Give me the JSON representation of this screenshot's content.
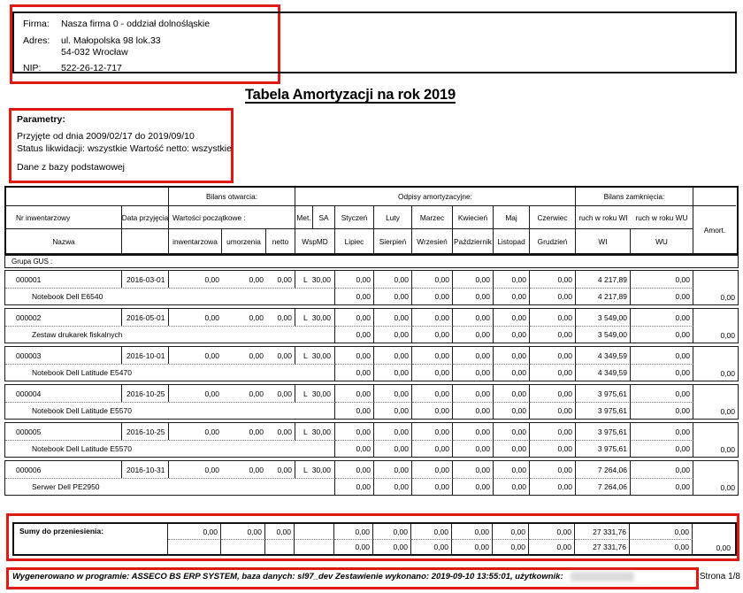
{
  "company": {
    "firma_label": "Firma:",
    "firma": "Nasza firma 0 - oddział dolnośląskie",
    "adres_label": "Adres:",
    "adres_line1": "ul. Małopolska 98 lok.33",
    "adres_line2": "54-032  Wrocław",
    "nip_label": "NIP:",
    "nip": "522-26-12-717"
  },
  "title": "Tabela Amortyzacji na rok 2019",
  "parameters": {
    "header": "Parametry:",
    "line1": "Przyjęte od dnia 2009/02/17  do 2019/09/10",
    "line2": "Status likwidacji:  wszystkie   Wartość netto:  wszystkie",
    "line3": "Dane z bazy podstawowej"
  },
  "table": {
    "header": {
      "bilans_otwarcia": "Bilans otwarcia:",
      "odpisy": "Odpisy amortyzacyjne:",
      "bilans_zamkniecia": "Bilans zamknięcia:",
      "nr_inwentarzowy": "Nr inwentarzowy",
      "data_przyjecia": "Data przyjęcia",
      "wartosci_poczatkowe": "Wartości początkowe :",
      "met": "Met.",
      "sa": "SA",
      "wspmd": "WspMD",
      "nazwa": "Nazwa",
      "inwentarzowa": "inwentarzowa",
      "umorzenia": "umorzenia",
      "netto": "netto",
      "months_top": [
        "Styczeń",
        "Luty",
        "Marzec",
        "Kwiecień",
        "Maj",
        "Czerwiec"
      ],
      "months_bottom": [
        "Lipiec",
        "Sierpień",
        "Wrzesień",
        "Październik",
        "Listopad",
        "Grudzień"
      ],
      "ruch_wi": "ruch w roku WI",
      "ruch_wu": "ruch w roku WU",
      "wi": "WI",
      "wu": "WU",
      "amort": "Amort."
    },
    "group_label": "Grupa GUS :",
    "rows": [
      {
        "nr": "000001",
        "date": "2016-03-01",
        "name": "Notebook Dell E6540",
        "inw": "0,00",
        "umo": "0,00",
        "netto": "0,00",
        "met": "L",
        "sa": "30,00",
        "m1": [
          "0,00",
          "0,00",
          "0,00",
          "0,00",
          "0,00",
          "0,00"
        ],
        "m2": [
          "0,00",
          "0,00",
          "0,00",
          "0,00",
          "0,00",
          "0,00"
        ],
        "ruch_wi": "4 217,89",
        "ruch_wu": "0,00",
        "wi": "4 217,89",
        "wu": "0,00",
        "amort": "0,00"
      },
      {
        "nr": "000002",
        "date": "2016-05-01",
        "name": "Zestaw drukarek fiskalnych",
        "inw": "0,00",
        "umo": "0,00",
        "netto": "0,00",
        "met": "L",
        "sa": "30,00",
        "m1": [
          "0,00",
          "0,00",
          "0,00",
          "0,00",
          "0,00",
          "0,00"
        ],
        "m2": [
          "0,00",
          "0,00",
          "0,00",
          "0,00",
          "0,00",
          "0,00"
        ],
        "ruch_wi": "3 549,00",
        "ruch_wu": "0,00",
        "wi": "3 549,00",
        "wu": "0,00",
        "amort": "0,00"
      },
      {
        "nr": "000003",
        "date": "2016-10-01",
        "name": "Notebook Dell Latitude E5470",
        "inw": "0,00",
        "umo": "0,00",
        "netto": "0,00",
        "met": "L",
        "sa": "30,00",
        "m1": [
          "0,00",
          "0,00",
          "0,00",
          "0,00",
          "0,00",
          "0,00"
        ],
        "m2": [
          "0,00",
          "0,00",
          "0,00",
          "0,00",
          "0,00",
          "0,00"
        ],
        "ruch_wi": "4 349,59",
        "ruch_wu": "0,00",
        "wi": "4 349,59",
        "wu": "0,00",
        "amort": "0,00"
      },
      {
        "nr": "000004",
        "date": "2016-10-25",
        "name": "Notebook Dell Latitude E5570",
        "inw": "0,00",
        "umo": "0,00",
        "netto": "0,00",
        "met": "L",
        "sa": "30,00",
        "m1": [
          "0,00",
          "0,00",
          "0,00",
          "0,00",
          "0,00",
          "0,00"
        ],
        "m2": [
          "0,00",
          "0,00",
          "0,00",
          "0,00",
          "0,00",
          "0,00"
        ],
        "ruch_wi": "3 975,61",
        "ruch_wu": "0,00",
        "wi": "3 975,61",
        "wu": "0,00",
        "amort": "0,00"
      },
      {
        "nr": "000005",
        "date": "2016-10-25",
        "name": "Notebook Dell Latitude E5570",
        "inw": "0,00",
        "umo": "0,00",
        "netto": "0,00",
        "met": "L",
        "sa": "30,00",
        "m1": [
          "0,00",
          "0,00",
          "0,00",
          "0,00",
          "0,00",
          "0,00"
        ],
        "m2": [
          "0,00",
          "0,00",
          "0,00",
          "0,00",
          "0,00",
          "0,00"
        ],
        "ruch_wi": "3 975,61",
        "ruch_wu": "0,00",
        "wi": "3 975,61",
        "wu": "0,00",
        "amort": "0,00"
      },
      {
        "nr": "000006",
        "date": "2016-10-31",
        "name": "Serwer Dell PE2950",
        "inw": "0,00",
        "umo": "0,00",
        "netto": "0,00",
        "met": "L",
        "sa": "30,00",
        "m1": [
          "0,00",
          "0,00",
          "0,00",
          "0,00",
          "0,00",
          "0,00"
        ],
        "m2": [
          "0,00",
          "0,00",
          "0,00",
          "0,00",
          "0,00",
          "0,00"
        ],
        "ruch_wi": "7 264,06",
        "ruch_wu": "0,00",
        "wi": "7 264,06",
        "wu": "0,00",
        "amort": "0,00"
      }
    ],
    "summary": {
      "label": "Sumy do przeniesienia:",
      "inw": "0,00",
      "umo": "0,00",
      "netto": "0,00",
      "m1": [
        "0,00",
        "0,00",
        "0,00",
        "0,00",
        "0,00",
        "0,00"
      ],
      "m2": [
        "0,00",
        "0,00",
        "0,00",
        "0,00",
        "0,00",
        "0,00"
      ],
      "ruch_wi": "27 331,76",
      "ruch_wu": "0,00",
      "wi": "27 331,76",
      "wu": "0,00",
      "amort": "0,00"
    }
  },
  "footer": {
    "generated": "Wygenerowano w programie: ASSECO BS ERP SYSTEM, baza danych: sl97_dev   Zestawienie wykonano: 2019-09-10  13:55:01, użytkownik:",
    "page": "Strona 1/8"
  },
  "colors": {
    "annotation_red": "#df1a16",
    "border_black": "#1a1a1a"
  }
}
